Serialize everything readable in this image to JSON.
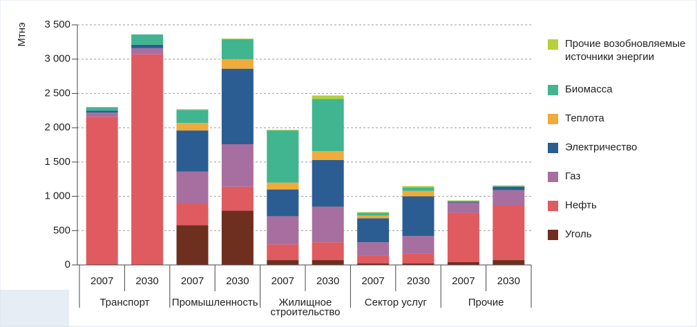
{
  "chart_data": {
    "type": "bar",
    "stacked": true,
    "y_label": "Мтнэ",
    "categories": [
      "2007",
      "2030",
      "2007",
      "2030",
      "2007",
      "2030",
      "2007",
      "2030",
      "2007",
      "2030"
    ],
    "groups": [
      "Транспорт",
      "Промышленность",
      "Жилищное строительство",
      "Сектор услуг",
      "Прочие"
    ],
    "series": [
      {
        "name": "Уголь",
        "color": "#6e2f1f",
        "values": [
          0,
          0,
          580,
          790,
          70,
          70,
          20,
          20,
          40,
          70
        ]
      },
      {
        "name": "Нефть",
        "color": "#e05b5f",
        "values": [
          2160,
          3070,
          320,
          350,
          230,
          260,
          120,
          150,
          720,
          800
        ]
      },
      {
        "name": "Газ",
        "color": "#a76f9f",
        "values": [
          60,
          90,
          460,
          620,
          410,
          520,
          190,
          250,
          150,
          220
        ]
      },
      {
        "name": "Электричество",
        "color": "#2b5d92",
        "values": [
          30,
          50,
          600,
          1100,
          390,
          680,
          350,
          580,
          10,
          50
        ]
      },
      {
        "name": "Теплота",
        "color": "#f0ab3b",
        "values": [
          0,
          0,
          110,
          140,
          100,
          130,
          40,
          80,
          0,
          0
        ]
      },
      {
        "name": "Биомасса",
        "color": "#40b58f",
        "values": [
          50,
          150,
          190,
          290,
          760,
          760,
          40,
          50,
          10,
          10
        ]
      },
      {
        "name": "Прочие возобновляемые источники энергии",
        "color": "#b6cf3b",
        "values": [
          0,
          0,
          10,
          10,
          10,
          50,
          10,
          20,
          10,
          10
        ]
      }
    ],
    "ylim": [
      0,
      3500
    ],
    "yticks": [
      0,
      500,
      {
        "value": 1000,
        "label": "1 000"
      },
      {
        "value": 1500,
        "label": "1 500"
      },
      {
        "value": 2000,
        "label": "2 000"
      },
      {
        "value": 2500,
        "label": "2 500"
      },
      {
        "value": 3000,
        "label": "3 000"
      },
      {
        "value": 3500,
        "label": "3 500"
      }
    ],
    "grid": true
  }
}
